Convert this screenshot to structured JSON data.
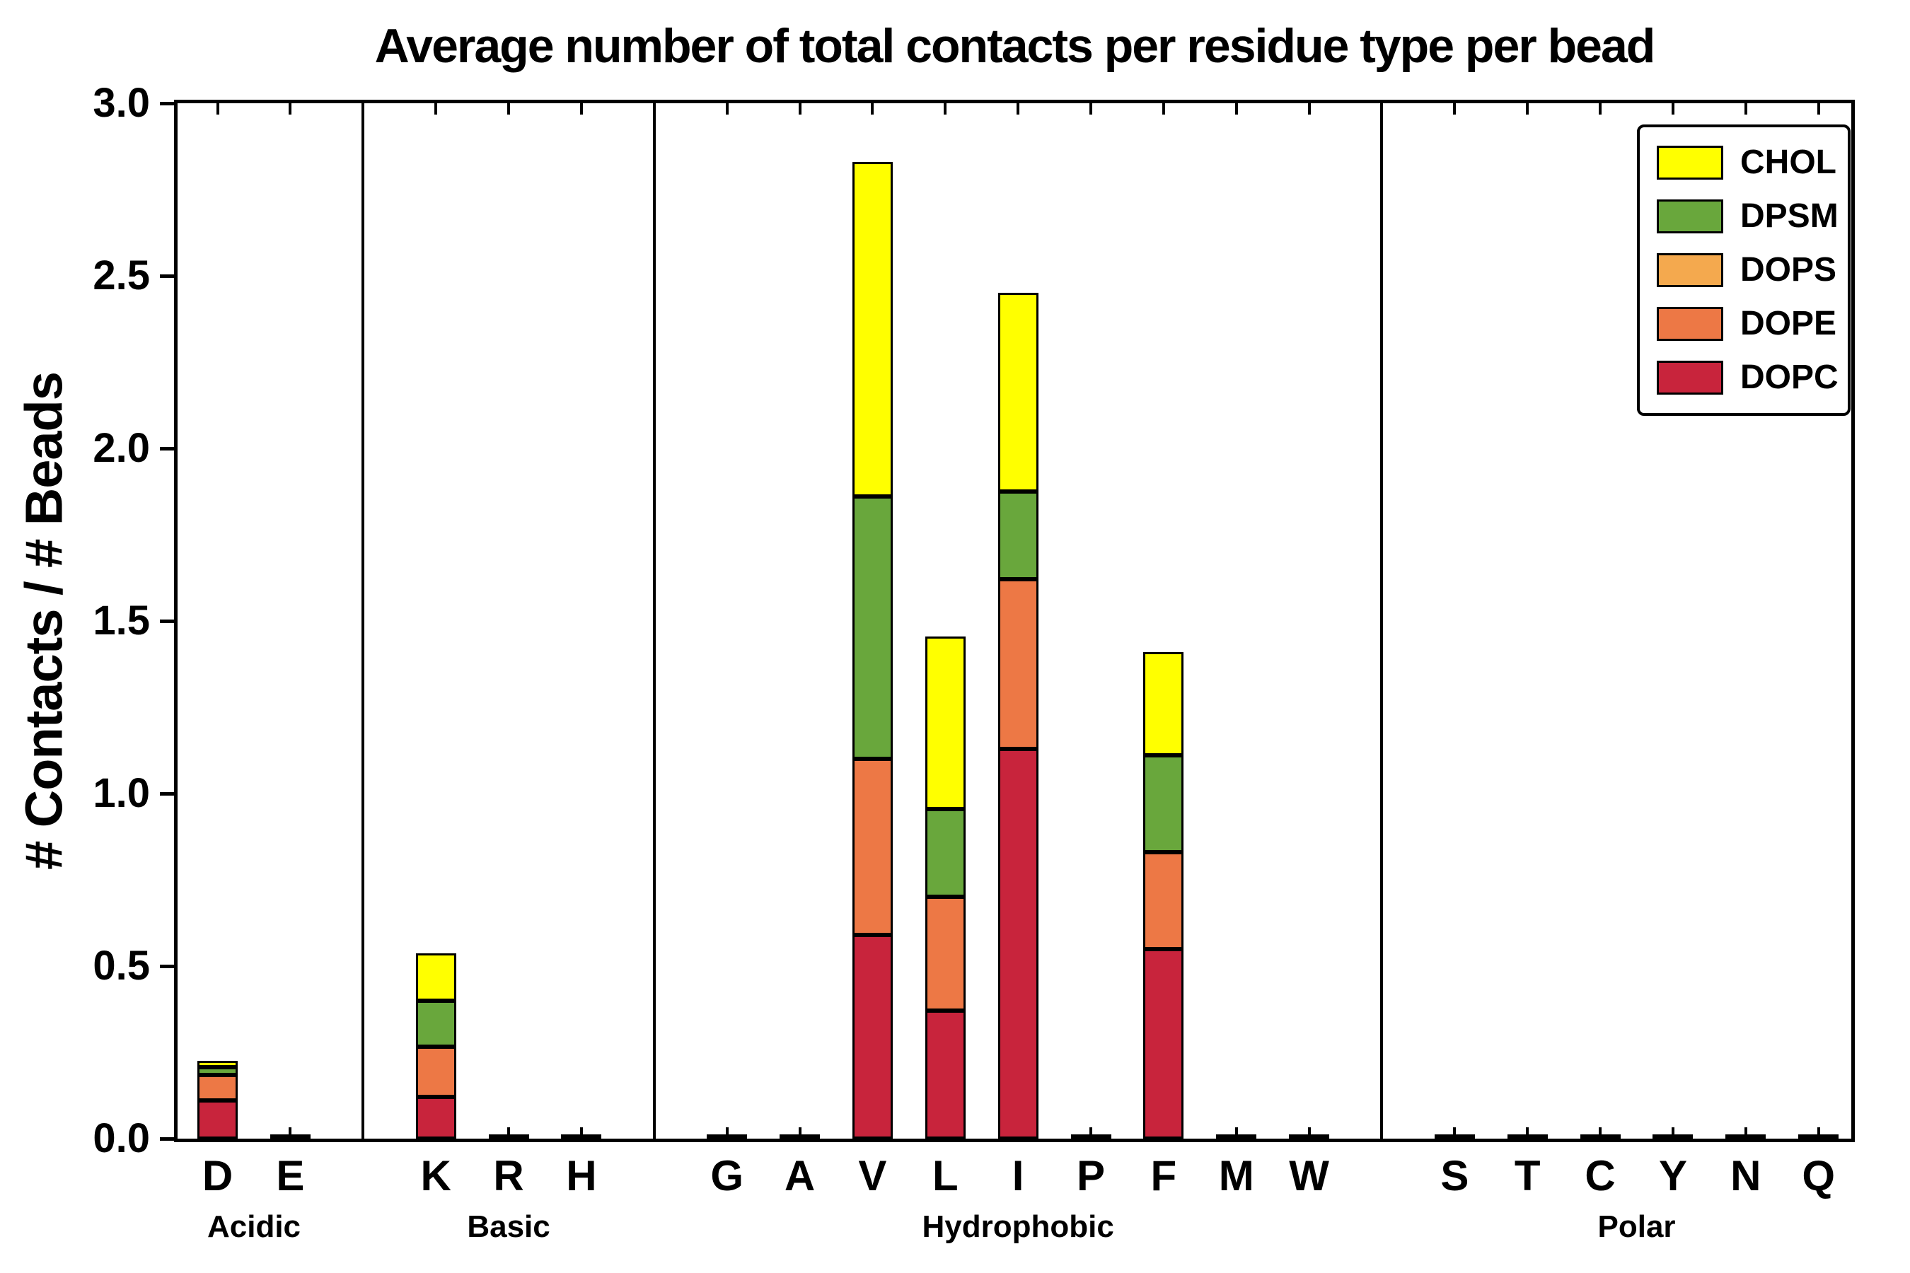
{
  "chart_data": {
    "type": "stacked_bar",
    "title": "Average number of total contacts per residue type per bead",
    "ylabel": "# Contacts / # Beads",
    "ylim": [
      0.0,
      3.0
    ],
    "yticks": [
      {
        "value": 0.0,
        "label": "0.0"
      },
      {
        "value": 0.5,
        "label": "0.5"
      },
      {
        "value": 1.0,
        "label": "1.0"
      },
      {
        "value": 1.5,
        "label": "1.5"
      },
      {
        "value": 2.0,
        "label": "2.0"
      },
      {
        "value": 2.5,
        "label": "2.5"
      },
      {
        "value": 3.0,
        "label": "3.0"
      }
    ],
    "grid": false,
    "edge_color": "#000000",
    "series": [
      {
        "name": "DOPC",
        "color": "#C8243C"
      },
      {
        "name": "DOPE",
        "color": "#ED7845"
      },
      {
        "name": "DOPS",
        "color": "#F4A94E"
      },
      {
        "name": "DPSM",
        "color": "#69A73C"
      },
      {
        "name": "CHOL",
        "color": "#FFFF00"
      }
    ],
    "legend": {
      "position": "upper-right",
      "entries": [
        "CHOL",
        "DPSM",
        "DOPS",
        "DOPE",
        "DOPC"
      ]
    },
    "groups": [
      {
        "label": "Acidic",
        "bars": [
          {
            "x": "D",
            "values": {
              "DOPC": 0.11,
              "DOPE": 0.075,
              "DOPS": 0.0,
              "DPSM": 0.022,
              "CHOL": 0.018
            }
          },
          {
            "x": "E",
            "values": {
              "DOPC": 0.003,
              "DOPE": 0.0,
              "DOPS": 0.0,
              "DPSM": 0.0,
              "CHOL": 0.0
            }
          }
        ]
      },
      {
        "label": "Basic",
        "bars": [
          {
            "x": "K",
            "values": {
              "DOPC": 0.12,
              "DOPE": 0.147,
              "DOPS": 0.0,
              "DPSM": 0.133,
              "CHOL": 0.137
            }
          },
          {
            "x": "R",
            "values": {
              "DOPC": 0.003,
              "DOPE": 0.0,
              "DOPS": 0.0,
              "DPSM": 0.0,
              "CHOL": 0.0
            }
          },
          {
            "x": "H",
            "values": {
              "DOPC": 0.003,
              "DOPE": 0.0,
              "DOPS": 0.0,
              "DPSM": 0.0,
              "CHOL": 0.0
            }
          }
        ]
      },
      {
        "label": "Hydrophobic",
        "bars": [
          {
            "x": "G",
            "values": {
              "DOPC": 0.003,
              "DOPE": 0.0,
              "DOPS": 0.0,
              "DPSM": 0.0,
              "CHOL": 0.0
            }
          },
          {
            "x": "A",
            "values": {
              "DOPC": 0.005,
              "DOPE": 0.0,
              "DOPS": 0.0,
              "DPSM": 0.0,
              "CHOL": 0.0
            }
          },
          {
            "x": "V",
            "values": {
              "DOPC": 0.59,
              "DOPE": 0.51,
              "DOPS": 0.0,
              "DPSM": 0.76,
              "CHOL": 0.97
            }
          },
          {
            "x": "L",
            "values": {
              "DOPC": 0.37,
              "DOPE": 0.33,
              "DOPS": 0.0,
              "DPSM": 0.255,
              "CHOL": 0.5
            }
          },
          {
            "x": "I",
            "values": {
              "DOPC": 1.13,
              "DOPE": 0.49,
              "DOPS": 0.0,
              "DPSM": 0.255,
              "CHOL": 0.575
            }
          },
          {
            "x": "P",
            "values": {
              "DOPC": 0.005,
              "DOPE": 0.0,
              "DOPS": 0.0,
              "DPSM": 0.0,
              "CHOL": 0.0
            }
          },
          {
            "x": "F",
            "values": {
              "DOPC": 0.55,
              "DOPE": 0.28,
              "DOPS": 0.0,
              "DPSM": 0.28,
              "CHOL": 0.3
            }
          },
          {
            "x": "M",
            "values": {
              "DOPC": 0.003,
              "DOPE": 0.0,
              "DOPS": 0.0,
              "DPSM": 0.0,
              "CHOL": 0.0
            }
          },
          {
            "x": "W",
            "values": {
              "DOPC": 0.003,
              "DOPE": 0.0,
              "DOPS": 0.0,
              "DPSM": 0.0,
              "CHOL": 0.0
            }
          }
        ]
      },
      {
        "label": "Polar",
        "bars": [
          {
            "x": "S",
            "values": {
              "DOPC": 0.003,
              "DOPE": 0.0,
              "DOPS": 0.0,
              "DPSM": 0.0,
              "CHOL": 0.0
            }
          },
          {
            "x": "T",
            "values": {
              "DOPC": 0.003,
              "DOPE": 0.0,
              "DOPS": 0.0,
              "DPSM": 0.0,
              "CHOL": 0.0
            }
          },
          {
            "x": "C",
            "values": {
              "DOPC": 0.003,
              "DOPE": 0.0,
              "DOPS": 0.0,
              "DPSM": 0.0,
              "CHOL": 0.0
            }
          },
          {
            "x": "Y",
            "values": {
              "DOPC": 0.003,
              "DOPE": 0.0,
              "DOPS": 0.0,
              "DPSM": 0.0,
              "CHOL": 0.0
            }
          },
          {
            "x": "N",
            "values": {
              "DOPC": 0.003,
              "DOPE": 0.0,
              "DOPS": 0.0,
              "DPSM": 0.0,
              "CHOL": 0.0
            }
          },
          {
            "x": "Q",
            "values": {
              "DOPC": 0.003,
              "DOPE": 0.0,
              "DOPS": 0.0,
              "DPSM": 0.0,
              "CHOL": 0.0
            }
          }
        ]
      }
    ]
  }
}
